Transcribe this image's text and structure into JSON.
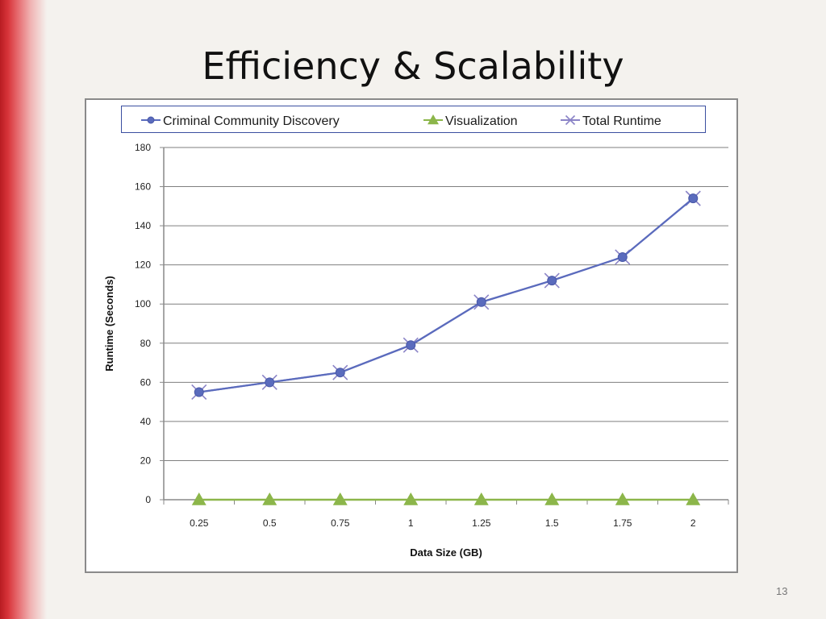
{
  "slide": {
    "title": "Efficiency & Scalability",
    "page_number": "13"
  },
  "chart_data": {
    "type": "line",
    "categories": [
      "0.25",
      "0.5",
      "0.75",
      "1",
      "1.25",
      "1.5",
      "1.75",
      "2"
    ],
    "xlabel": "Data Size (GB)",
    "ylabel": "Runtime (Seconds)",
    "ylim": [
      0,
      180
    ],
    "yticks": [
      0,
      20,
      40,
      60,
      80,
      100,
      120,
      140,
      160,
      180
    ],
    "grid": "horizontal",
    "legend_position": "top",
    "series": [
      {
        "name": "Criminal Community Discovery",
        "marker": "circle",
        "color": "#5a6bbd",
        "values": [
          55,
          60,
          65,
          79,
          101,
          112,
          124,
          154
        ]
      },
      {
        "name": "Visualization",
        "marker": "triangle",
        "color": "#8cb64a",
        "values": [
          0,
          0,
          0,
          0,
          0,
          0,
          0,
          0
        ]
      },
      {
        "name": "Total Runtime",
        "marker": "x",
        "color": "#8b84c7",
        "values": [
          55,
          60,
          65,
          79,
          101,
          112,
          124,
          154
        ]
      }
    ]
  }
}
